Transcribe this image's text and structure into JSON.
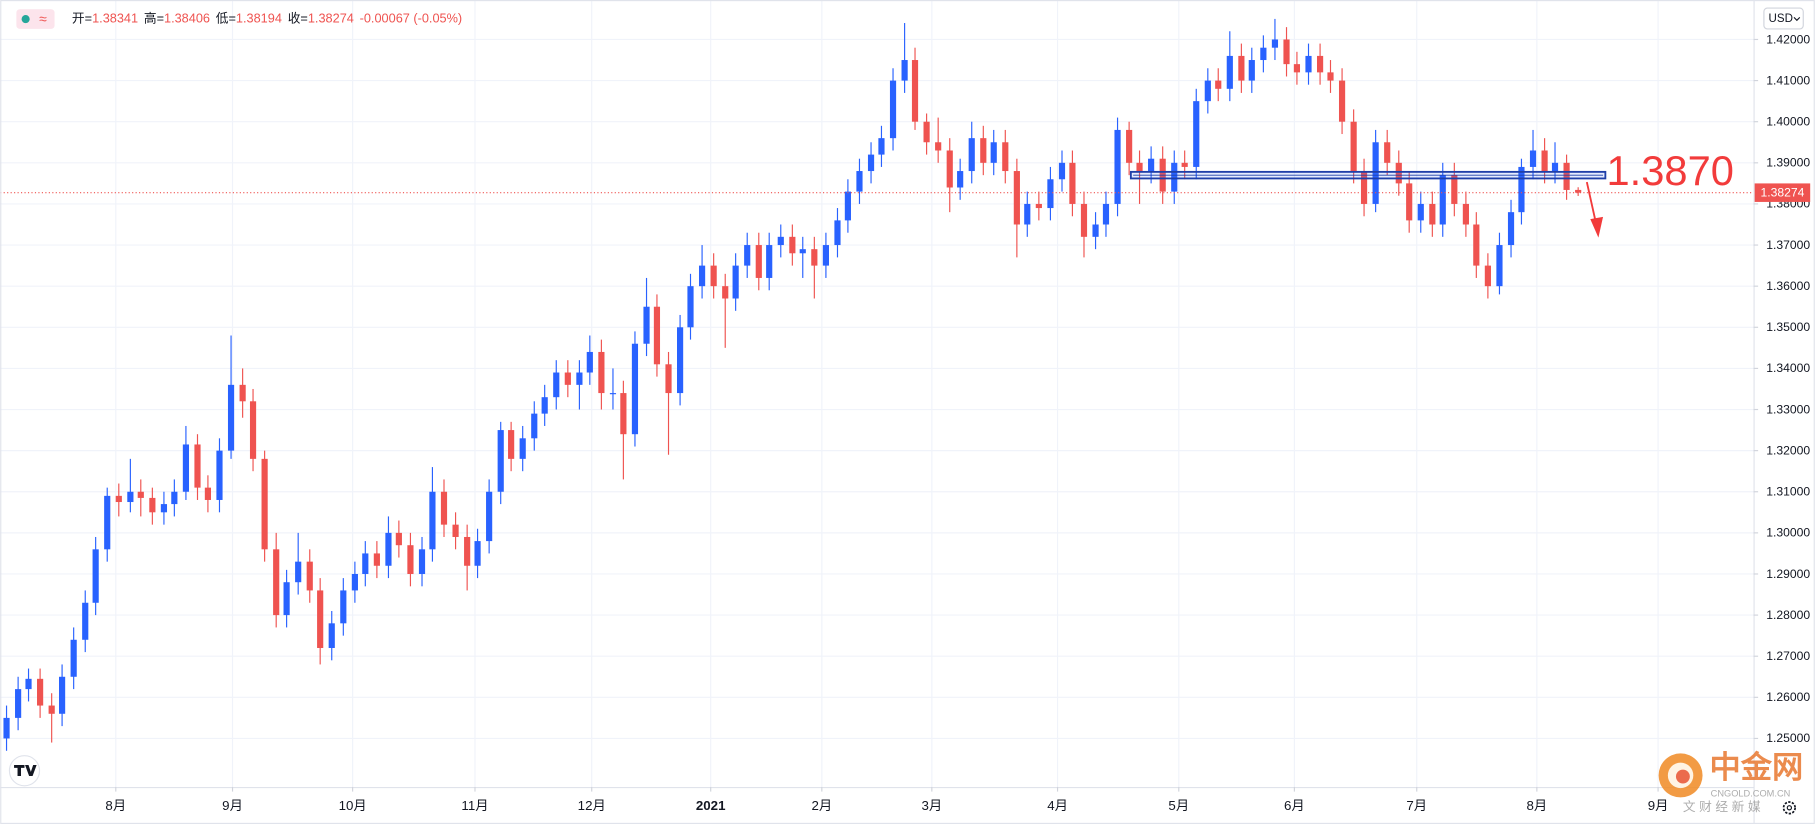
{
  "chart_data": {
    "type": "candlestick",
    "header": {
      "badge": "≈"
    },
    "ohlc_legend": [
      {
        "label": "开=",
        "text": "1.38341"
      },
      {
        "label": "高=",
        "text": "1.38406"
      },
      {
        "label": "低=",
        "text": "1.38194"
      },
      {
        "label": "收=",
        "text": "1.38274"
      },
      {
        "text": "-0.00067 (-0.05%)"
      }
    ],
    "currency": "USD",
    "up_color": "#2962ff",
    "down_color": "#ef5350",
    "grid": true,
    "xlim": [
      -0.5,
      155.7
    ],
    "xticks": [
      {
        "value": 9.8,
        "label": "8月"
      },
      {
        "value": 20.2,
        "label": "9月"
      },
      {
        "value": 30.9,
        "label": "10月"
      },
      {
        "value": 41.8,
        "label": "11月"
      },
      {
        "value": 52.2,
        "label": "12月"
      },
      {
        "value": 62.8,
        "label": "2021"
      },
      {
        "value": 72.7,
        "label": "2月"
      },
      {
        "value": 82.5,
        "label": "3月"
      },
      {
        "value": 93.7,
        "label": "4月"
      },
      {
        "value": 104.5,
        "label": "5月"
      },
      {
        "value": 114.8,
        "label": "6月"
      },
      {
        "value": 125.7,
        "label": "7月"
      },
      {
        "value": 136.4,
        "label": "8月"
      },
      {
        "value": 147.2,
        "label": "9月"
      }
    ],
    "ylim": [
      1.2382,
      1.4296
    ],
    "yticks": [
      {
        "value": 1.25,
        "label": "1.25000"
      },
      {
        "value": 1.26,
        "label": "1.26000"
      },
      {
        "value": 1.27,
        "label": "1.27000"
      },
      {
        "value": 1.28,
        "label": "1.28000"
      },
      {
        "value": 1.29,
        "label": "1.29000"
      },
      {
        "value": 1.3,
        "label": "1.30000"
      },
      {
        "value": 1.31,
        "label": "1.31000"
      },
      {
        "value": 1.32,
        "label": "1.32000"
      },
      {
        "value": 1.33,
        "label": "1.33000"
      },
      {
        "value": 1.34,
        "label": "1.34000"
      },
      {
        "value": 1.35,
        "label": "1.35000"
      },
      {
        "value": 1.36,
        "label": "1.36000"
      },
      {
        "value": 1.37,
        "label": "1.37000"
      },
      {
        "value": 1.38,
        "label": "1.38000"
      },
      {
        "value": 1.39,
        "label": "1.39000"
      },
      {
        "value": 1.4,
        "label": "1.40000"
      },
      {
        "value": 1.41,
        "label": "1.41000"
      },
      {
        "value": 1.42,
        "label": "1.42000"
      }
    ],
    "level": {
      "value": 1.387,
      "label": "1.3870",
      "color": "#f23b3b"
    },
    "candles": [
      [
        1.25,
        1.258,
        1.247,
        1.255
      ],
      [
        1.255,
        1.265,
        1.252,
        1.262
      ],
      [
        1.262,
        1.267,
        1.259,
        1.2645
      ],
      [
        1.2645,
        1.267,
        1.255,
        1.258
      ],
      [
        1.258,
        1.261,
        1.249,
        1.256
      ],
      [
        1.256,
        1.268,
        1.253,
        1.265
      ],
      [
        1.265,
        1.277,
        1.262,
        1.274
      ],
      [
        1.274,
        1.286,
        1.271,
        1.283
      ],
      [
        1.283,
        1.299,
        1.28,
        1.296
      ],
      [
        1.296,
        1.311,
        1.293,
        1.309
      ],
      [
        1.309,
        1.312,
        1.304,
        1.3075
      ],
      [
        1.3075,
        1.318,
        1.305,
        1.31
      ],
      [
        1.31,
        1.313,
        1.304,
        1.3085
      ],
      [
        1.3085,
        1.311,
        1.302,
        1.305
      ],
      [
        1.305,
        1.31,
        1.302,
        1.307
      ],
      [
        1.307,
        1.313,
        1.304,
        1.31
      ],
      [
        1.31,
        1.326,
        1.308,
        1.3215
      ],
      [
        1.3215,
        1.324,
        1.308,
        1.311
      ],
      [
        1.311,
        1.314,
        1.305,
        1.308
      ],
      [
        1.308,
        1.323,
        1.305,
        1.32
      ],
      [
        1.32,
        1.348,
        1.318,
        1.336
      ],
      [
        1.336,
        1.34,
        1.328,
        1.332
      ],
      [
        1.332,
        1.335,
        1.315,
        1.318
      ],
      [
        1.318,
        1.32,
        1.293,
        1.296
      ],
      [
        1.296,
        1.3,
        1.277,
        1.28
      ],
      [
        1.28,
        1.291,
        1.277,
        1.288
      ],
      [
        1.288,
        1.3,
        1.285,
        1.293
      ],
      [
        1.293,
        1.296,
        1.283,
        1.286
      ],
      [
        1.286,
        1.289,
        1.268,
        1.272
      ],
      [
        1.272,
        1.281,
        1.269,
        1.278
      ],
      [
        1.278,
        1.289,
        1.275,
        1.286
      ],
      [
        1.286,
        1.293,
        1.283,
        1.29
      ],
      [
        1.29,
        1.298,
        1.287,
        1.295
      ],
      [
        1.295,
        1.298,
        1.289,
        1.292
      ],
      [
        1.292,
        1.304,
        1.289,
        1.3
      ],
      [
        1.3,
        1.303,
        1.294,
        1.297
      ],
      [
        1.297,
        1.3,
        1.287,
        1.29
      ],
      [
        1.29,
        1.299,
        1.287,
        1.296
      ],
      [
        1.296,
        1.316,
        1.293,
        1.31
      ],
      [
        1.31,
        1.313,
        1.299,
        1.302
      ],
      [
        1.302,
        1.305,
        1.296,
        1.299
      ],
      [
        1.299,
        1.302,
        1.286,
        1.292
      ],
      [
        1.292,
        1.301,
        1.289,
        1.298
      ],
      [
        1.298,
        1.313,
        1.295,
        1.31
      ],
      [
        1.31,
        1.327,
        1.307,
        1.325
      ],
      [
        1.325,
        1.327,
        1.315,
        1.318
      ],
      [
        1.318,
        1.326,
        1.315,
        1.323
      ],
      [
        1.323,
        1.332,
        1.32,
        1.329
      ],
      [
        1.329,
        1.336,
        1.326,
        1.333
      ],
      [
        1.333,
        1.342,
        1.33,
        1.339
      ],
      [
        1.339,
        1.342,
        1.333,
        1.336
      ],
      [
        1.336,
        1.342,
        1.33,
        1.339
      ],
      [
        1.339,
        1.348,
        1.336,
        1.344
      ],
      [
        1.344,
        1.347,
        1.33,
        1.334
      ],
      [
        1.334,
        1.34,
        1.33,
        1.334
      ],
      [
        1.334,
        1.337,
        1.313,
        1.324
      ],
      [
        1.324,
        1.349,
        1.321,
        1.346
      ],
      [
        1.346,
        1.362,
        1.343,
        1.355
      ],
      [
        1.355,
        1.358,
        1.338,
        1.341
      ],
      [
        1.341,
        1.344,
        1.319,
        1.334
      ],
      [
        1.334,
        1.353,
        1.331,
        1.35
      ],
      [
        1.35,
        1.363,
        1.347,
        1.36
      ],
      [
        1.36,
        1.37,
        1.357,
        1.365
      ],
      [
        1.365,
        1.368,
        1.357,
        1.36
      ],
      [
        1.36,
        1.363,
        1.345,
        1.357
      ],
      [
        1.357,
        1.368,
        1.354,
        1.365
      ],
      [
        1.365,
        1.373,
        1.362,
        1.37
      ],
      [
        1.37,
        1.373,
        1.359,
        1.362
      ],
      [
        1.362,
        1.373,
        1.359,
        1.37
      ],
      [
        1.37,
        1.375,
        1.367,
        1.372
      ],
      [
        1.372,
        1.375,
        1.365,
        1.368
      ],
      [
        1.368,
        1.372,
        1.362,
        1.369
      ],
      [
        1.369,
        1.372,
        1.357,
        1.365
      ],
      [
        1.365,
        1.373,
        1.362,
        1.37
      ],
      [
        1.37,
        1.379,
        1.367,
        1.376
      ],
      [
        1.376,
        1.386,
        1.373,
        1.383
      ],
      [
        1.383,
        1.391,
        1.38,
        1.388
      ],
      [
        1.388,
        1.395,
        1.385,
        1.392
      ],
      [
        1.392,
        1.399,
        1.389,
        1.396
      ],
      [
        1.396,
        1.413,
        1.393,
        1.41
      ],
      [
        1.41,
        1.424,
        1.407,
        1.415
      ],
      [
        1.415,
        1.418,
        1.398,
        1.4
      ],
      [
        1.4,
        1.402,
        1.392,
        1.395
      ],
      [
        1.395,
        1.401,
        1.39,
        1.393
      ],
      [
        1.393,
        1.396,
        1.378,
        1.384
      ],
      [
        1.384,
        1.391,
        1.381,
        1.388
      ],
      [
        1.388,
        1.4,
        1.385,
        1.396
      ],
      [
        1.396,
        1.399,
        1.387,
        1.39
      ],
      [
        1.39,
        1.398,
        1.387,
        1.395
      ],
      [
        1.395,
        1.398,
        1.385,
        1.388
      ],
      [
        1.388,
        1.391,
        1.367,
        1.375
      ],
      [
        1.375,
        1.383,
        1.372,
        1.38
      ],
      [
        1.38,
        1.383,
        1.376,
        1.379
      ],
      [
        1.379,
        1.389,
        1.376,
        1.386
      ],
      [
        1.386,
        1.393,
        1.383,
        1.39
      ],
      [
        1.39,
        1.393,
        1.377,
        1.38
      ],
      [
        1.38,
        1.383,
        1.367,
        1.372
      ],
      [
        1.372,
        1.378,
        1.369,
        1.375
      ],
      [
        1.375,
        1.383,
        1.372,
        1.38
      ],
      [
        1.38,
        1.401,
        1.377,
        1.398
      ],
      [
        1.398,
        1.4,
        1.387,
        1.39
      ],
      [
        1.39,
        1.393,
        1.38,
        1.388
      ],
      [
        1.388,
        1.394,
        1.385,
        1.391
      ],
      [
        1.391,
        1.394,
        1.38,
        1.383
      ],
      [
        1.383,
        1.393,
        1.38,
        1.39
      ],
      [
        1.39,
        1.393,
        1.386,
        1.389
      ],
      [
        1.389,
        1.408,
        1.386,
        1.405
      ],
      [
        1.405,
        1.413,
        1.402,
        1.41
      ],
      [
        1.41,
        1.413,
        1.405,
        1.408
      ],
      [
        1.408,
        1.422,
        1.405,
        1.416
      ],
      [
        1.416,
        1.419,
        1.407,
        1.41
      ],
      [
        1.41,
        1.418,
        1.407,
        1.415
      ],
      [
        1.415,
        1.421,
        1.412,
        1.418
      ],
      [
        1.418,
        1.425,
        1.415,
        1.42
      ],
      [
        1.42,
        1.423,
        1.411,
        1.414
      ],
      [
        1.414,
        1.417,
        1.409,
        1.412
      ],
      [
        1.412,
        1.419,
        1.409,
        1.416
      ],
      [
        1.416,
        1.419,
        1.409,
        1.412
      ],
      [
        1.412,
        1.415,
        1.407,
        1.41
      ],
      [
        1.41,
        1.413,
        1.397,
        1.4
      ],
      [
        1.4,
        1.403,
        1.385,
        1.388
      ],
      [
        1.388,
        1.391,
        1.377,
        1.38
      ],
      [
        1.38,
        1.398,
        1.378,
        1.395
      ],
      [
        1.395,
        1.398,
        1.387,
        1.39
      ],
      [
        1.39,
        1.393,
        1.382,
        1.385
      ],
      [
        1.385,
        1.388,
        1.373,
        1.376
      ],
      [
        1.376,
        1.383,
        1.373,
        1.38
      ],
      [
        1.38,
        1.383,
        1.372,
        1.375
      ],
      [
        1.375,
        1.39,
        1.372,
        1.387
      ],
      [
        1.387,
        1.39,
        1.377,
        1.38
      ],
      [
        1.38,
        1.383,
        1.372,
        1.375
      ],
      [
        1.375,
        1.378,
        1.362,
        1.365
      ],
      [
        1.365,
        1.368,
        1.357,
        1.36
      ],
      [
        1.36,
        1.373,
        1.358,
        1.37
      ],
      [
        1.37,
        1.381,
        1.367,
        1.378
      ],
      [
        1.378,
        1.391,
        1.375,
        1.389
      ],
      [
        1.389,
        1.398,
        1.386,
        1.393
      ],
      [
        1.393,
        1.396,
        1.385,
        1.388
      ],
      [
        1.388,
        1.395,
        1.385,
        1.39
      ],
      [
        1.39,
        1.392,
        1.381,
        1.3834
      ],
      [
        1.38341,
        1.38406,
        1.38194,
        1.38274
      ]
    ]
  },
  "watermark": {
    "brand": "中金网",
    "site": "CNGOLD.COM.CN",
    "tagline": "文 财 经 新 媒"
  }
}
